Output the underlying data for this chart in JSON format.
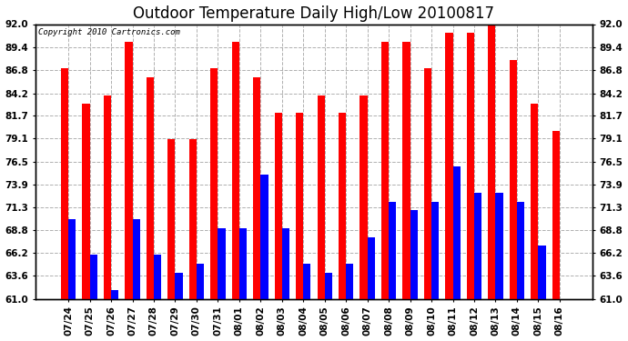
{
  "title": "Outdoor Temperature Daily High/Low 20100817",
  "copyright": "Copyright 2010 Cartronics.com",
  "dates": [
    "07/24",
    "07/25",
    "07/26",
    "07/27",
    "07/28",
    "07/29",
    "07/30",
    "07/31",
    "08/01",
    "08/02",
    "08/03",
    "08/04",
    "08/05",
    "08/06",
    "08/07",
    "08/08",
    "08/09",
    "08/10",
    "08/11",
    "08/12",
    "08/13",
    "08/14",
    "08/15",
    "08/16"
  ],
  "highs": [
    87,
    83,
    84,
    90,
    86,
    79,
    79,
    87,
    90,
    86,
    82,
    82,
    84,
    82,
    84,
    90,
    90,
    87,
    91,
    91,
    92,
    88,
    83,
    80
  ],
  "lows": [
    70,
    66,
    62,
    70,
    66,
    64,
    65,
    69,
    69,
    75,
    69,
    65,
    64,
    65,
    68,
    72,
    71,
    72,
    76,
    73,
    73,
    72,
    67,
    61
  ],
  "ymin": 61.0,
  "ymax": 92.0,
  "yticks": [
    61.0,
    63.6,
    66.2,
    68.8,
    71.3,
    73.9,
    76.5,
    79.1,
    81.7,
    84.2,
    86.8,
    89.4,
    92.0
  ],
  "bar_color_high": "#ff0000",
  "bar_color_low": "#0000ff",
  "background_color": "#ffffff",
  "grid_color": "#b0b0b0",
  "title_fontsize": 12,
  "tick_fontsize": 7.5,
  "bar_width": 0.35
}
